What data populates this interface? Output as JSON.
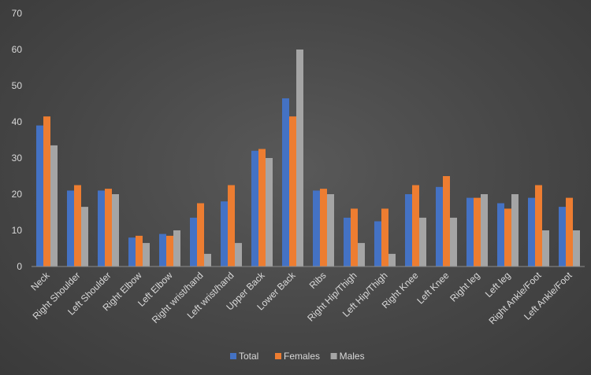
{
  "chart_data": {
    "type": "bar",
    "categories": [
      "Neck",
      "Right Shoulder",
      "Left Shoulder",
      "Right Elbow",
      "Left Elbow",
      "Right wrist/hand",
      "Left wrist/hand",
      "Upper Back",
      "Lower Back",
      "Ribs",
      "Right Hip/Thigh",
      "Left Hip/Thigh",
      "Right Knee",
      "Left Knee",
      "Right leg",
      "Left leg",
      "Right Ankle/Foot",
      "Left Ankle/Foot"
    ],
    "series": [
      {
        "name": "Total",
        "color": "#4472c4",
        "values": [
          39,
          21,
          21,
          8,
          9,
          13.5,
          18,
          32,
          46.5,
          21,
          13.5,
          12.5,
          20,
          22,
          19,
          17.5,
          19,
          16.5
        ]
      },
      {
        "name": "Females",
        "color": "#ed7d31",
        "values": [
          41.5,
          22.5,
          21.5,
          8.5,
          8.5,
          17.5,
          22.5,
          32.5,
          41.5,
          21.5,
          16,
          16,
          22.5,
          25,
          19,
          16,
          22.5,
          19
        ]
      },
      {
        "name": "Males",
        "color": "#a5a5a5",
        "values": [
          33.5,
          16.5,
          20,
          6.5,
          10,
          3.5,
          6.5,
          30,
          60,
          20,
          6.5,
          3.5,
          13.5,
          13.5,
          20,
          20,
          10,
          10
        ]
      }
    ],
    "ylim": [
      0,
      70
    ],
    "yticks": [
      0,
      10,
      20,
      30,
      40,
      50,
      60,
      70
    ],
    "grid": false,
    "legend": "bottom"
  }
}
